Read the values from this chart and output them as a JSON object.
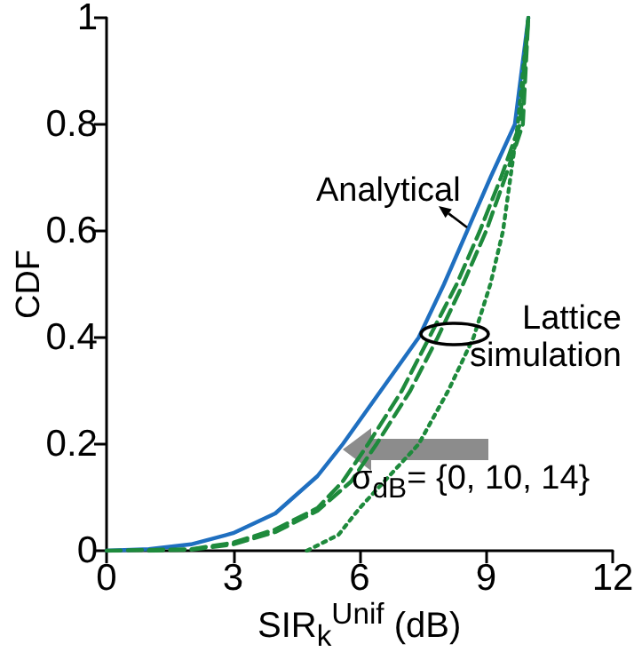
{
  "chart_data": {
    "type": "line",
    "xlabel": "SIR$_{k}$$^{Unif}$ (dB)",
    "ylabel": "CDF",
    "xlim": [
      0,
      12
    ],
    "xticks": [
      0,
      3,
      6,
      9,
      12
    ],
    "ylim": [
      0,
      1
    ],
    "yticks": [
      0,
      0.2,
      0.4,
      0.6,
      0.8,
      1
    ],
    "grid": false,
    "marker": "none",
    "annotations": [
      "Analytical",
      "Lattice simulation",
      {
        "text": "σ$_{dB}$= {0, 10, 14}",
        "x": 5.6,
        "y": 0.19
      }
    ],
    "series": [
      {
        "color": "#1f6fc0",
        "line_style": "solid",
        "x": [
          0,
          1,
          2,
          3,
          4,
          5,
          5.6,
          6.5,
          7.4,
          8,
          8.55,
          9.1,
          9.68,
          10
        ],
        "values": [
          0,
          0.003,
          0.012,
          0.033,
          0.07,
          0.14,
          0.2,
          0.3,
          0.4,
          0.5,
          0.6,
          0.7,
          0.8,
          1
        ]
      },
      {
        "color": "#1e8a3c",
        "line_style": "dashed",
        "x": [
          0,
          2,
          3,
          4,
          5,
          5.6,
          6.2,
          7,
          7.65,
          8.3,
          8.85,
          9.35,
          9.8,
          10
        ],
        "values": [
          0,
          0.003,
          0.015,
          0.04,
          0.08,
          0.13,
          0.2,
          0.3,
          0.4,
          0.5,
          0.6,
          0.7,
          0.8,
          1
        ]
      },
      {
        "color": "#1e8a3c",
        "line_style": "dashed",
        "x": [
          1,
          2,
          3,
          4,
          5,
          5.8,
          6.4,
          7.2,
          7.85,
          8.45,
          9,
          9.45,
          9.87,
          10
        ],
        "values": [
          0,
          0.002,
          0.012,
          0.035,
          0.075,
          0.13,
          0.2,
          0.3,
          0.4,
          0.5,
          0.6,
          0.7,
          0.8,
          1
        ]
      },
      {
        "color": "#1e8a3c",
        "line_style": "dotted",
        "x": [
          4.75,
          5.5,
          6,
          6.7,
          7.4,
          8.1,
          8.7,
          9.1,
          9.4,
          9.75,
          10
        ],
        "values": [
          0,
          0.03,
          0.08,
          0.14,
          0.2,
          0.3,
          0.4,
          0.5,
          0.6,
          0.8,
          1
        ]
      }
    ]
  }
}
